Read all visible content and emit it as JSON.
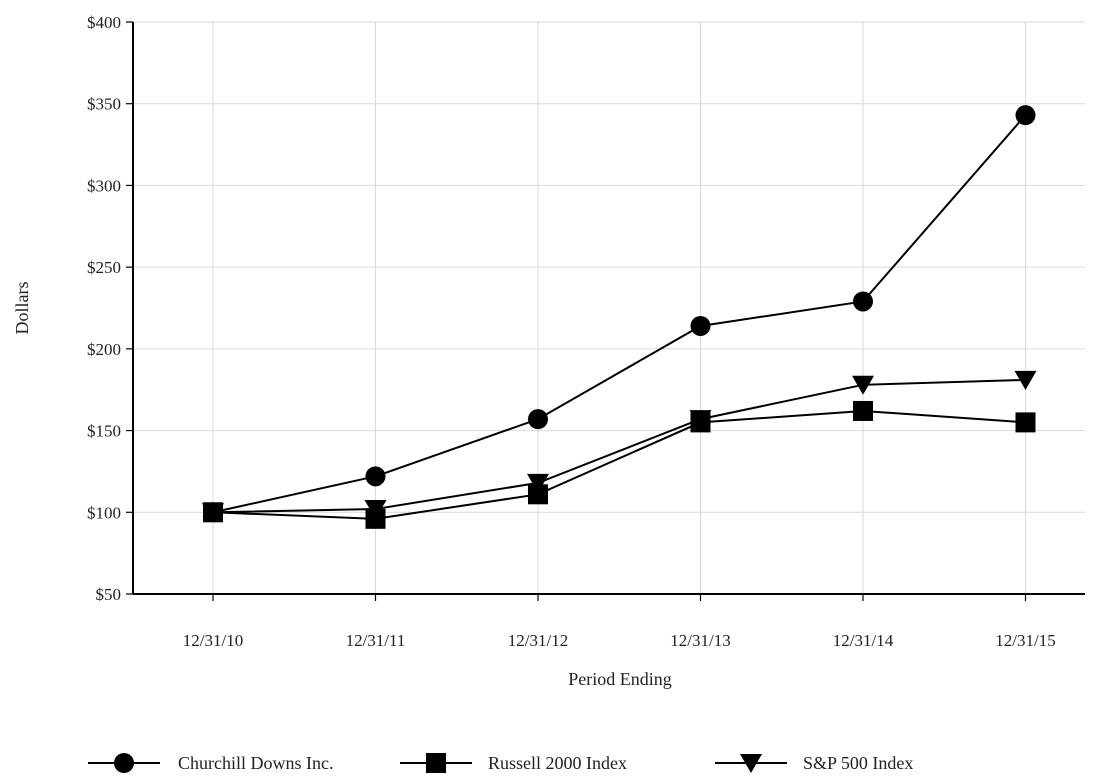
{
  "chart_data": {
    "type": "line",
    "categories": [
      "12/31/10",
      "12/31/11",
      "12/31/12",
      "12/31/13",
      "12/31/14",
      "12/31/15"
    ],
    "xlabel": "Period Ending",
    "ylabel": "Dollars",
    "ylim": [
      50,
      400
    ],
    "yticks": [
      50,
      100,
      150,
      200,
      250,
      300,
      350,
      400
    ],
    "ytick_labels": [
      "$50",
      "$100",
      "$150",
      "$200",
      "$250",
      "$300",
      "$350",
      "$400"
    ],
    "grid": true,
    "legend_position": "bottom",
    "series": [
      {
        "name": "Churchill Downs Inc.",
        "marker": "circle",
        "values": [
          100,
          122,
          157,
          214,
          229,
          343
        ]
      },
      {
        "name": "Russell 2000 Index",
        "marker": "square",
        "values": [
          100,
          96,
          111,
          155,
          162,
          155
        ]
      },
      {
        "name": "S&P 500 Index",
        "marker": "triangle-down",
        "values": [
          100,
          102,
          118,
          157,
          178,
          181
        ]
      }
    ],
    "colors": {
      "line": "#000000",
      "grid": "#d9d9d9",
      "text": "#222222"
    }
  }
}
